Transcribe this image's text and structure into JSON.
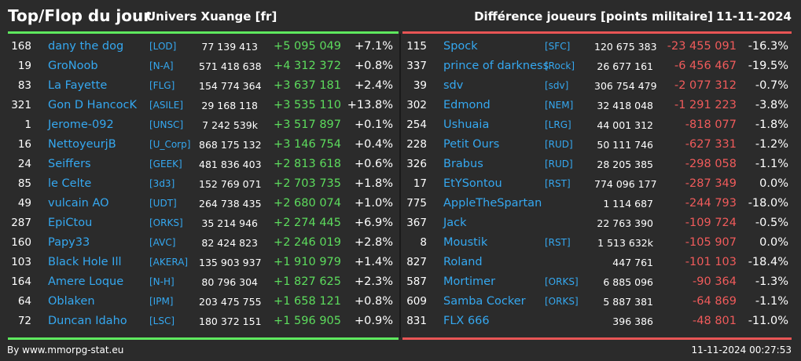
{
  "header": {
    "title": "Top/Flop du jour",
    "server": "Univers Xuange [fr]",
    "metric": "Différence joueurs [points militaire]",
    "date": "11-11-2024"
  },
  "colors": {
    "name": "#35a8f0",
    "gain": "#5ddc5d",
    "loss": "#f05b5b",
    "top_line": "#5ee85e",
    "flop_line": "#e85555"
  },
  "top": [
    {
      "rank": "168",
      "name": "dany the dog",
      "alliance": "[LOD]",
      "total": "77 139 413",
      "diff": "+5 095 049",
      "pct": "+7.1%"
    },
    {
      "rank": "19",
      "name": "GroNoob",
      "alliance": "[N-A]",
      "total": "571 418 638",
      "diff": "+4 312 372",
      "pct": "+0.8%"
    },
    {
      "rank": "83",
      "name": "La Fayette",
      "alliance": "[FLG]",
      "total": "154 774 364",
      "diff": "+3 637 181",
      "pct": "+2.4%"
    },
    {
      "rank": "321",
      "name": "Gon D HancocK",
      "alliance": "[ASILE]",
      "total": "29 168 118",
      "diff": "+3 535 110",
      "pct": "+13.8%"
    },
    {
      "rank": "1",
      "name": "Jerome-092",
      "alliance": "[UNSC]",
      "total": "7 242 539k",
      "diff": "+3 517 897",
      "pct": "+0.1%"
    },
    {
      "rank": "16",
      "name": "NettoyeurjB",
      "alliance": "[U_Corp]",
      "total": "868 175 132",
      "diff": "+3 146 754",
      "pct": "+0.4%"
    },
    {
      "rank": "24",
      "name": "Seiffers",
      "alliance": "[GEEK]",
      "total": "481 836 403",
      "diff": "+2 813 618",
      "pct": "+0.6%"
    },
    {
      "rank": "85",
      "name": "le Celte",
      "alliance": "[3d3]",
      "total": "152 769 071",
      "diff": "+2 703 735",
      "pct": "+1.8%"
    },
    {
      "rank": "49",
      "name": "vulcain AO",
      "alliance": "[UDT]",
      "total": "264 738 435",
      "diff": "+2 680 074",
      "pct": "+1.0%"
    },
    {
      "rank": "287",
      "name": "EpiCtou",
      "alliance": "[ORKS]",
      "total": "35 214 946",
      "diff": "+2 274 445",
      "pct": "+6.9%"
    },
    {
      "rank": "160",
      "name": "Papy33",
      "alliance": "[AVC]",
      "total": "82 424 823",
      "diff": "+2 246 019",
      "pct": "+2.8%"
    },
    {
      "rank": "103",
      "name": "Black Hole Ill",
      "alliance": "[AKERA]",
      "total": "135 903 937",
      "diff": "+1 910 979",
      "pct": "+1.4%"
    },
    {
      "rank": "164",
      "name": "Amere Loque",
      "alliance": "[N-H]",
      "total": "80 796 304",
      "diff": "+1 827 625",
      "pct": "+2.3%"
    },
    {
      "rank": "64",
      "name": "Oblaken",
      "alliance": "[IPM]",
      "total": "203 475 755",
      "diff": "+1 658 121",
      "pct": "+0.8%"
    },
    {
      "rank": "72",
      "name": "Duncan Idaho",
      "alliance": "[LSC]",
      "total": "180 372 151",
      "diff": "+1 596 905",
      "pct": "+0.9%"
    }
  ],
  "flop": [
    {
      "rank": "115",
      "name": "Spock",
      "alliance": "[SFC]",
      "total": "120 675 383",
      "diff": "-23 455 091",
      "pct": "-16.3%"
    },
    {
      "rank": "337",
      "name": "prince of darkness",
      "alliance": "[Rock]",
      "total": "26 677 161",
      "diff": "-6 456 467",
      "pct": "-19.5%"
    },
    {
      "rank": "39",
      "name": "sdv",
      "alliance": "[sdv]",
      "total": "306 754 479",
      "diff": "-2 077 312",
      "pct": "-0.7%"
    },
    {
      "rank": "302",
      "name": "Edmond",
      "alliance": "[NEM]",
      "total": "32 418 048",
      "diff": "-1 291 223",
      "pct": "-3.8%"
    },
    {
      "rank": "254",
      "name": "Ushuaia",
      "alliance": "[LRG]",
      "total": "44 001 312",
      "diff": "-818 077",
      "pct": "-1.8%"
    },
    {
      "rank": "228",
      "name": "Petit Ours",
      "alliance": "[RUD]",
      "total": "50 111 746",
      "diff": "-627 331",
      "pct": "-1.2%"
    },
    {
      "rank": "326",
      "name": "Brabus",
      "alliance": "[RUD]",
      "total": "28 205 385",
      "diff": "-298 058",
      "pct": "-1.1%"
    },
    {
      "rank": "17",
      "name": "EtYSontou",
      "alliance": "[RST]",
      "total": "774 096 177",
      "diff": "-287 349",
      "pct": "0.0%"
    },
    {
      "rank": "775",
      "name": "AppleTheSpartan",
      "alliance": "",
      "total": "1 114 687",
      "diff": "-244 793",
      "pct": "-18.0%"
    },
    {
      "rank": "367",
      "name": "Jack",
      "alliance": "",
      "total": "22 763 390",
      "diff": "-109 724",
      "pct": "-0.5%"
    },
    {
      "rank": "8",
      "name": "Moustik",
      "alliance": "[RST]",
      "total": "1 513 632k",
      "diff": "-105 907",
      "pct": "0.0%"
    },
    {
      "rank": "827",
      "name": "Roland",
      "alliance": "",
      "total": "447 761",
      "diff": "-101 103",
      "pct": "-18.4%"
    },
    {
      "rank": "587",
      "name": "Mortimer",
      "alliance": "[ORKS]",
      "total": "6 885 096",
      "diff": "-90 364",
      "pct": "-1.3%"
    },
    {
      "rank": "609",
      "name": "Samba Cocker",
      "alliance": "[ORKS]",
      "total": "5 887 381",
      "diff": "-64 869",
      "pct": "-1.1%"
    },
    {
      "rank": "831",
      "name": "FLX 666",
      "alliance": "",
      "total": "396 386",
      "diff": "-48 801",
      "pct": "-11.0%"
    }
  ],
  "footer": {
    "credit": "By www.mmorpg-stat.eu",
    "timestamp": "11-11-2024 00:27:53"
  }
}
